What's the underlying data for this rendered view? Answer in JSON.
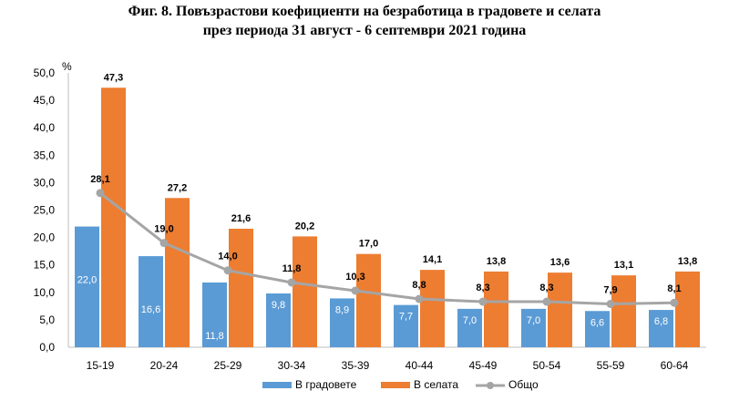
{
  "title_line1": "Фиг. 8. Повъзрастови коефициенти на безработица в градовете и селата",
  "title_line2": "през периода 31 август - 6 септември 2021 година",
  "chart_data": {
    "type": "bar",
    "unit_label": "%",
    "categories": [
      "15-19",
      "20-24",
      "25-29",
      "30-34",
      "35-39",
      "40-44",
      "45-49",
      "50-54",
      "55-59",
      "60-64"
    ],
    "series": [
      {
        "name": "В градовете",
        "kind": "bar",
        "color": "#5b9bd5",
        "values": [
          22.0,
          16.6,
          11.8,
          9.8,
          8.9,
          7.7,
          7.0,
          7.0,
          6.6,
          6.8
        ]
      },
      {
        "name": "В селата",
        "kind": "bar",
        "color": "#ed7d31",
        "values": [
          47.3,
          27.2,
          21.6,
          20.2,
          17.0,
          14.1,
          13.8,
          13.6,
          13.1,
          13.8
        ]
      },
      {
        "name": "Общо",
        "kind": "line",
        "color": "#a5a5a5",
        "values": [
          28.1,
          19.0,
          14.0,
          11.8,
          10.3,
          8.8,
          8.3,
          8.3,
          7.9,
          8.1
        ]
      }
    ],
    "ylim": [
      0,
      50
    ],
    "yticks": [
      0,
      5,
      10,
      15,
      20,
      25,
      30,
      35,
      40,
      45,
      50
    ],
    "ytick_labels": [
      "0,0",
      "5,0",
      "10,0",
      "15,0",
      "20,0",
      "25,0",
      "30,0",
      "35,0",
      "40,0",
      "45,0",
      "50,0"
    ],
    "decimal_separator": ",",
    "legend_position": "bottom",
    "grid": false
  }
}
